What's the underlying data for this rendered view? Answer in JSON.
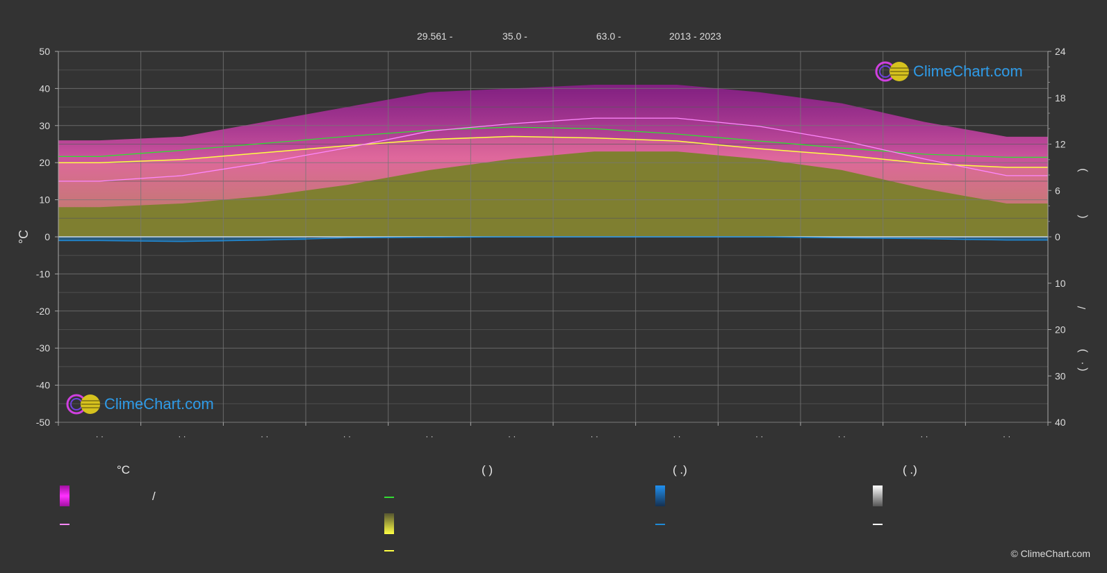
{
  "header": {
    "latitude": "29.561 -",
    "longitude": "35.0 -",
    "elevation": "63.0 -",
    "years": "2013 - 2023"
  },
  "logo": {
    "text": "ClimeChart.com"
  },
  "copyright": "© ClimeChart.com",
  "legend": {
    "col1_title": "°C",
    "col1_slash": "/",
    "col2_title": "(          )",
    "col3_title": "(    .)",
    "col4_title": "(    .)"
  },
  "colors": {
    "background": "#333333",
    "temp_band": "#e020e0",
    "avg_max": "#ff88ff",
    "daylight": "#33dd33",
    "sunshine_fill": "#9a9a30",
    "sunshine_line": "#ffff44",
    "precip": "#1f8ad6",
    "snow": "#ffffff"
  },
  "chart_data": {
    "type": "area",
    "months": 12,
    "left_axis": {
      "label": "°C",
      "min": -50,
      "max": 50,
      "ticks": [
        50,
        40,
        30,
        20,
        10,
        0,
        -10,
        -20,
        -30,
        -40,
        -50
      ]
    },
    "right_axis_top": {
      "min": 0,
      "max": 24,
      "ticks": [
        24,
        18,
        12,
        6,
        0
      ]
    },
    "right_axis_bottom": {
      "min": 0,
      "max": 40,
      "ticks": [
        0,
        10,
        20,
        30,
        40
      ]
    },
    "right_axis_label_chars": [
      ")",
      "(",
      "/",
      ")",
      "·",
      "("
    ],
    "month_tick_labels": [
      "· ·",
      "· ·",
      "· ·",
      "· ·",
      "· ·",
      "· ·",
      "· ·",
      "· ·",
      "· ·",
      "· ·",
      "· ·",
      "· ·"
    ],
    "series": [
      {
        "key": "temp_band_max",
        "values": [
          26,
          27,
          31,
          35,
          39,
          40,
          41,
          41,
          39,
          36,
          31,
          27
        ]
      },
      {
        "key": "temp_band_min",
        "values": [
          8,
          9,
          11,
          14,
          18,
          21,
          23,
          23,
          21,
          18,
          13,
          9
        ]
      },
      {
        "key": "avg_max_temp",
        "values": [
          15,
          16.5,
          20,
          24,
          28.5,
          30.5,
          32,
          32,
          29.8,
          26,
          21,
          16.5
        ]
      },
      {
        "key": "daylight_hours",
        "values": [
          10.4,
          11.2,
          12.1,
          13.0,
          13.8,
          14.2,
          14.0,
          13.3,
          12.4,
          11.5,
          10.7,
          10.3
        ]
      },
      {
        "key": "sunshine_hours",
        "values": [
          9.6,
          10.0,
          10.9,
          11.8,
          12.6,
          13.0,
          12.8,
          12.4,
          11.4,
          10.6,
          9.5,
          9.0
        ]
      },
      {
        "key": "precipitation_mm",
        "values": [
          0.8,
          1.0,
          0.7,
          0.2,
          0.1,
          0.0,
          0.0,
          0.0,
          0.0,
          0.2,
          0.4,
          0.7
        ]
      }
    ]
  }
}
